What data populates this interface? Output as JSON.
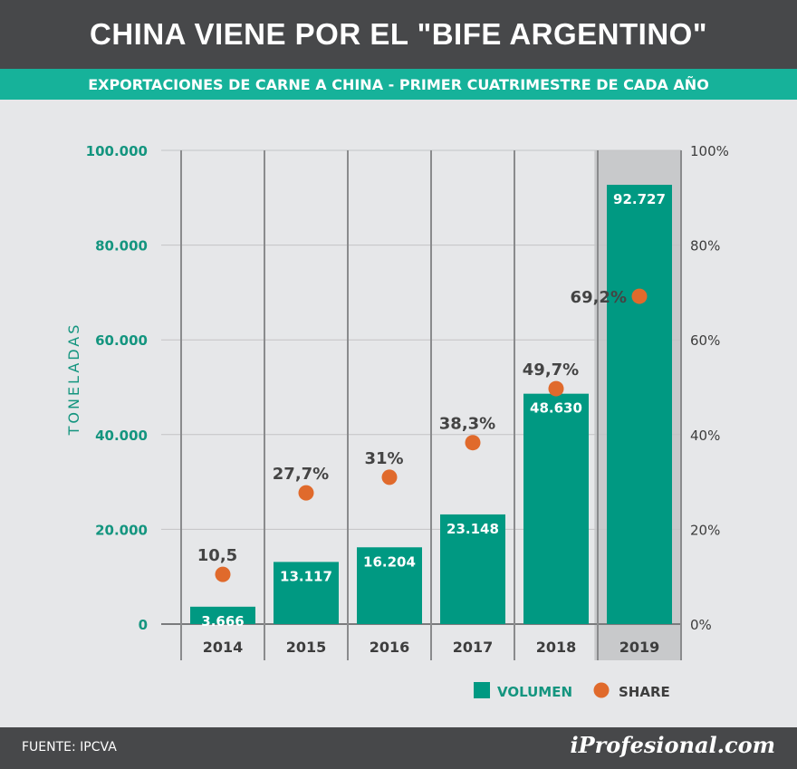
{
  "title": "CHINA VIENE POR EL \"BIFE ARGENTINO\"",
  "subtitle": "EXPORTACIONES DE CARNE A CHINA - PRIMER CUATRIMESTRE DE CADA AÑO",
  "source": "FUENTE: IPCVA",
  "brand": "iProfesional.com",
  "colors": {
    "bar": "#009982",
    "share": "#e06a2c",
    "highlight": "#c8c9cb",
    "header": "#47484a",
    "accent": "#16b29a"
  },
  "chart_data": {
    "type": "bar",
    "categories": [
      "2014",
      "2015",
      "2016",
      "2017",
      "2018",
      "2019"
    ],
    "highlight_category": "2019",
    "ylabel": "TONELADAS",
    "ylim": [
      0,
      100000
    ],
    "y_ticks": [
      "0",
      "20.000",
      "40.000",
      "60.000",
      "80.000",
      "100.000"
    ],
    "y2lim": [
      0,
      100
    ],
    "y2_ticks": [
      "0%",
      "20%",
      "40%",
      "60%",
      "80%",
      "100%"
    ],
    "grid": true,
    "series": [
      {
        "name": "VOLUMEN",
        "type": "bar",
        "values": [
          3666,
          13117,
          16204,
          23148,
          48630,
          92727
        ],
        "labels": [
          "3.666",
          "13.117",
          "16.204",
          "23.148",
          "48.630",
          "92.727"
        ]
      },
      {
        "name": "SHARE",
        "type": "scatter",
        "axis": "right",
        "values": [
          10.5,
          27.7,
          31,
          38.3,
          49.7,
          69.2
        ],
        "labels": [
          "10,5",
          "27,7%",
          "31%",
          "38,3%",
          "49,7%",
          "69,2%"
        ]
      }
    ],
    "legend": {
      "position": "bottom-right",
      "items": [
        "VOLUMEN",
        "SHARE"
      ]
    }
  }
}
